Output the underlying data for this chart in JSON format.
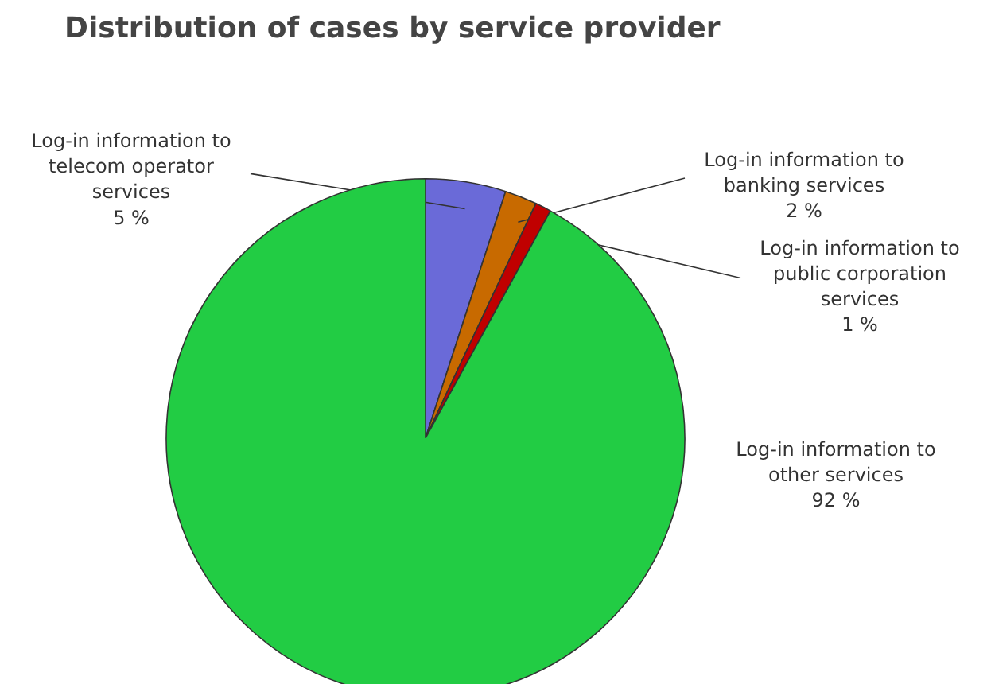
{
  "chart_data": {
    "type": "pie",
    "title": "Distribution of cases by service provider",
    "categories": [
      "Log-in information to telecom operator services",
      "Log-in information to banking services",
      "Log-in information to public corporation services",
      "Log-in information to other services"
    ],
    "values": [
      5,
      2,
      1,
      92
    ],
    "value_labels": [
      "5 %",
      "2 %",
      "1 %",
      "92 %"
    ],
    "colors": [
      "#6a6ad8",
      "#c86a00",
      "#c00000",
      "#22cc44"
    ]
  }
}
